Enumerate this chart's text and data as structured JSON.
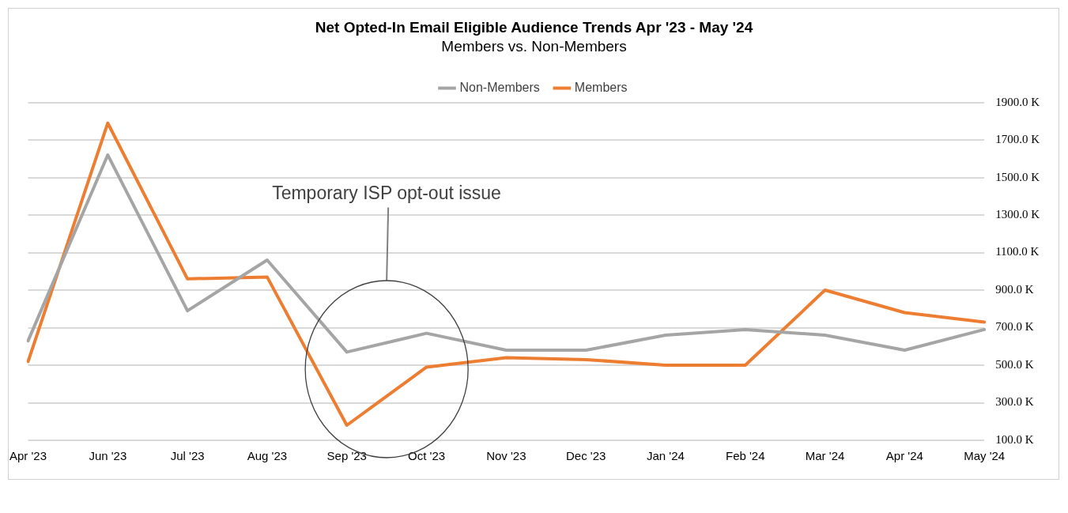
{
  "chart_data": {
    "type": "line",
    "title": "Net Opted-In Email Eligible Audience Trends Apr '23 - May '24",
    "subtitle": "Members vs. Non-Members",
    "categories": [
      "Apr '23",
      "Jun '23",
      "Jul '23",
      "Aug '23",
      "Sep '23",
      "Oct '23",
      "Nov '23",
      "Dec '23",
      "Jan '24",
      "Feb '24",
      "Mar '24",
      "Apr '24",
      "May '24"
    ],
    "series": [
      {
        "name": "Non-Members",
        "color": "#a5a5a5",
        "values": [
          630,
          1620,
          790,
          1060,
          570,
          670,
          580,
          580,
          660,
          690,
          660,
          580,
          690
        ]
      },
      {
        "name": "Members",
        "color": "#ed7d31",
        "values": [
          520,
          1790,
          960,
          970,
          180,
          490,
          540,
          530,
          500,
          500,
          900,
          780,
          730
        ]
      }
    ],
    "ylim": [
      100,
      1900
    ],
    "yticks": [
      {
        "value": 100,
        "label": "100.0 K"
      },
      {
        "value": 300,
        "label": "300.0 K"
      },
      {
        "value": 500,
        "label": "500.0 K"
      },
      {
        "value": 700,
        "label": "700.0 K"
      },
      {
        "value": 900,
        "label": "900.0 K"
      },
      {
        "value": 1100,
        "label": "1100.0 K"
      },
      {
        "value": 1300,
        "label": "1300.0 K"
      },
      {
        "value": 1500,
        "label": "1500.0 K"
      },
      {
        "value": 1700,
        "label": "1700.0 K"
      },
      {
        "value": 1900,
        "label": "1900.0 K"
      }
    ],
    "grid": "y",
    "legend": "top",
    "marker": "none",
    "line_style": "solid",
    "annotations": [
      "Temporary ISP opt-out issue"
    ]
  }
}
